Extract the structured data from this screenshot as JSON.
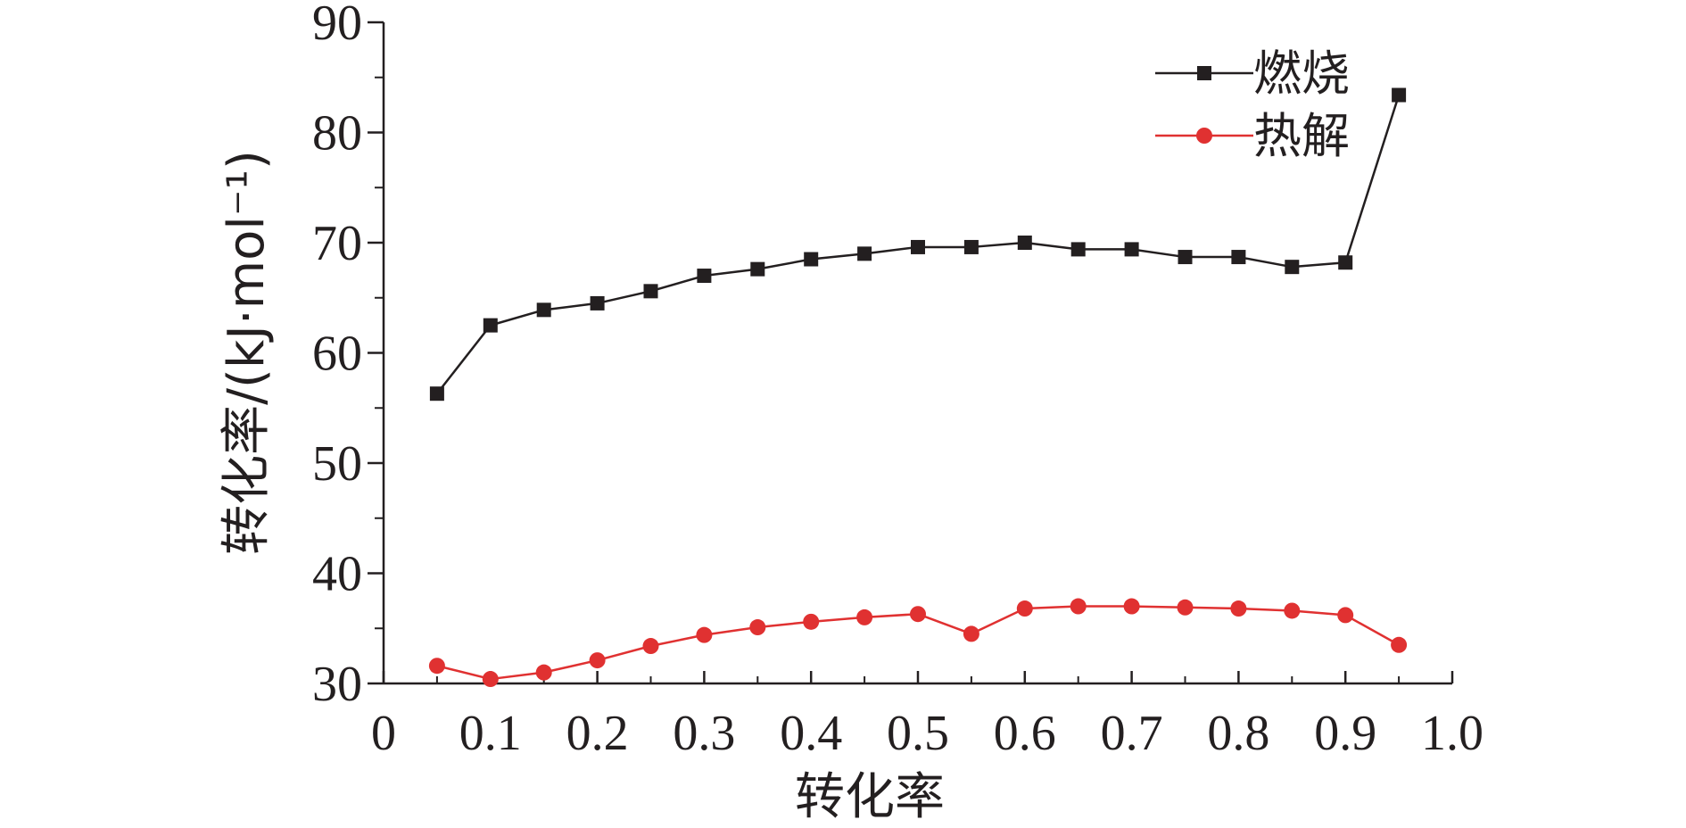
{
  "chart_data": {
    "type": "line",
    "xlabel": "转化率",
    "ylabel": "转化率/(kJ·mol⁻¹)",
    "xlim": [
      0,
      1.0
    ],
    "ylim": [
      30,
      90
    ],
    "x_ticks": [
      "0",
      "0.1",
      "0.2",
      "0.3",
      "0.4",
      "0.5",
      "0.6",
      "0.7",
      "0.8",
      "0.9",
      "1.0"
    ],
    "y_ticks": [
      "30",
      "40",
      "50",
      "60",
      "70",
      "80",
      "90"
    ],
    "grid": false,
    "legend_position": "top-right",
    "x": [
      0.05,
      0.1,
      0.15,
      0.2,
      0.25,
      0.3,
      0.35,
      0.4,
      0.45,
      0.5,
      0.55,
      0.6,
      0.65,
      0.7,
      0.75,
      0.8,
      0.85,
      0.9,
      0.95
    ],
    "series": [
      {
        "name": "燃烧",
        "color": "#231f20",
        "marker": "square",
        "values": [
          56.3,
          62.5,
          63.9,
          64.5,
          65.6,
          67.0,
          67.6,
          68.5,
          69.0,
          69.6,
          69.6,
          70.0,
          69.4,
          69.4,
          68.7,
          68.7,
          67.8,
          68.2,
          83.4
        ]
      },
      {
        "name": "热解",
        "color": "#e03131",
        "marker": "circle",
        "values": [
          31.6,
          30.4,
          31.0,
          32.1,
          33.4,
          34.4,
          35.1,
          35.6,
          36.0,
          36.3,
          34.5,
          36.8,
          37.0,
          37.0,
          36.9,
          36.8,
          36.6,
          36.2,
          33.5
        ]
      }
    ]
  }
}
